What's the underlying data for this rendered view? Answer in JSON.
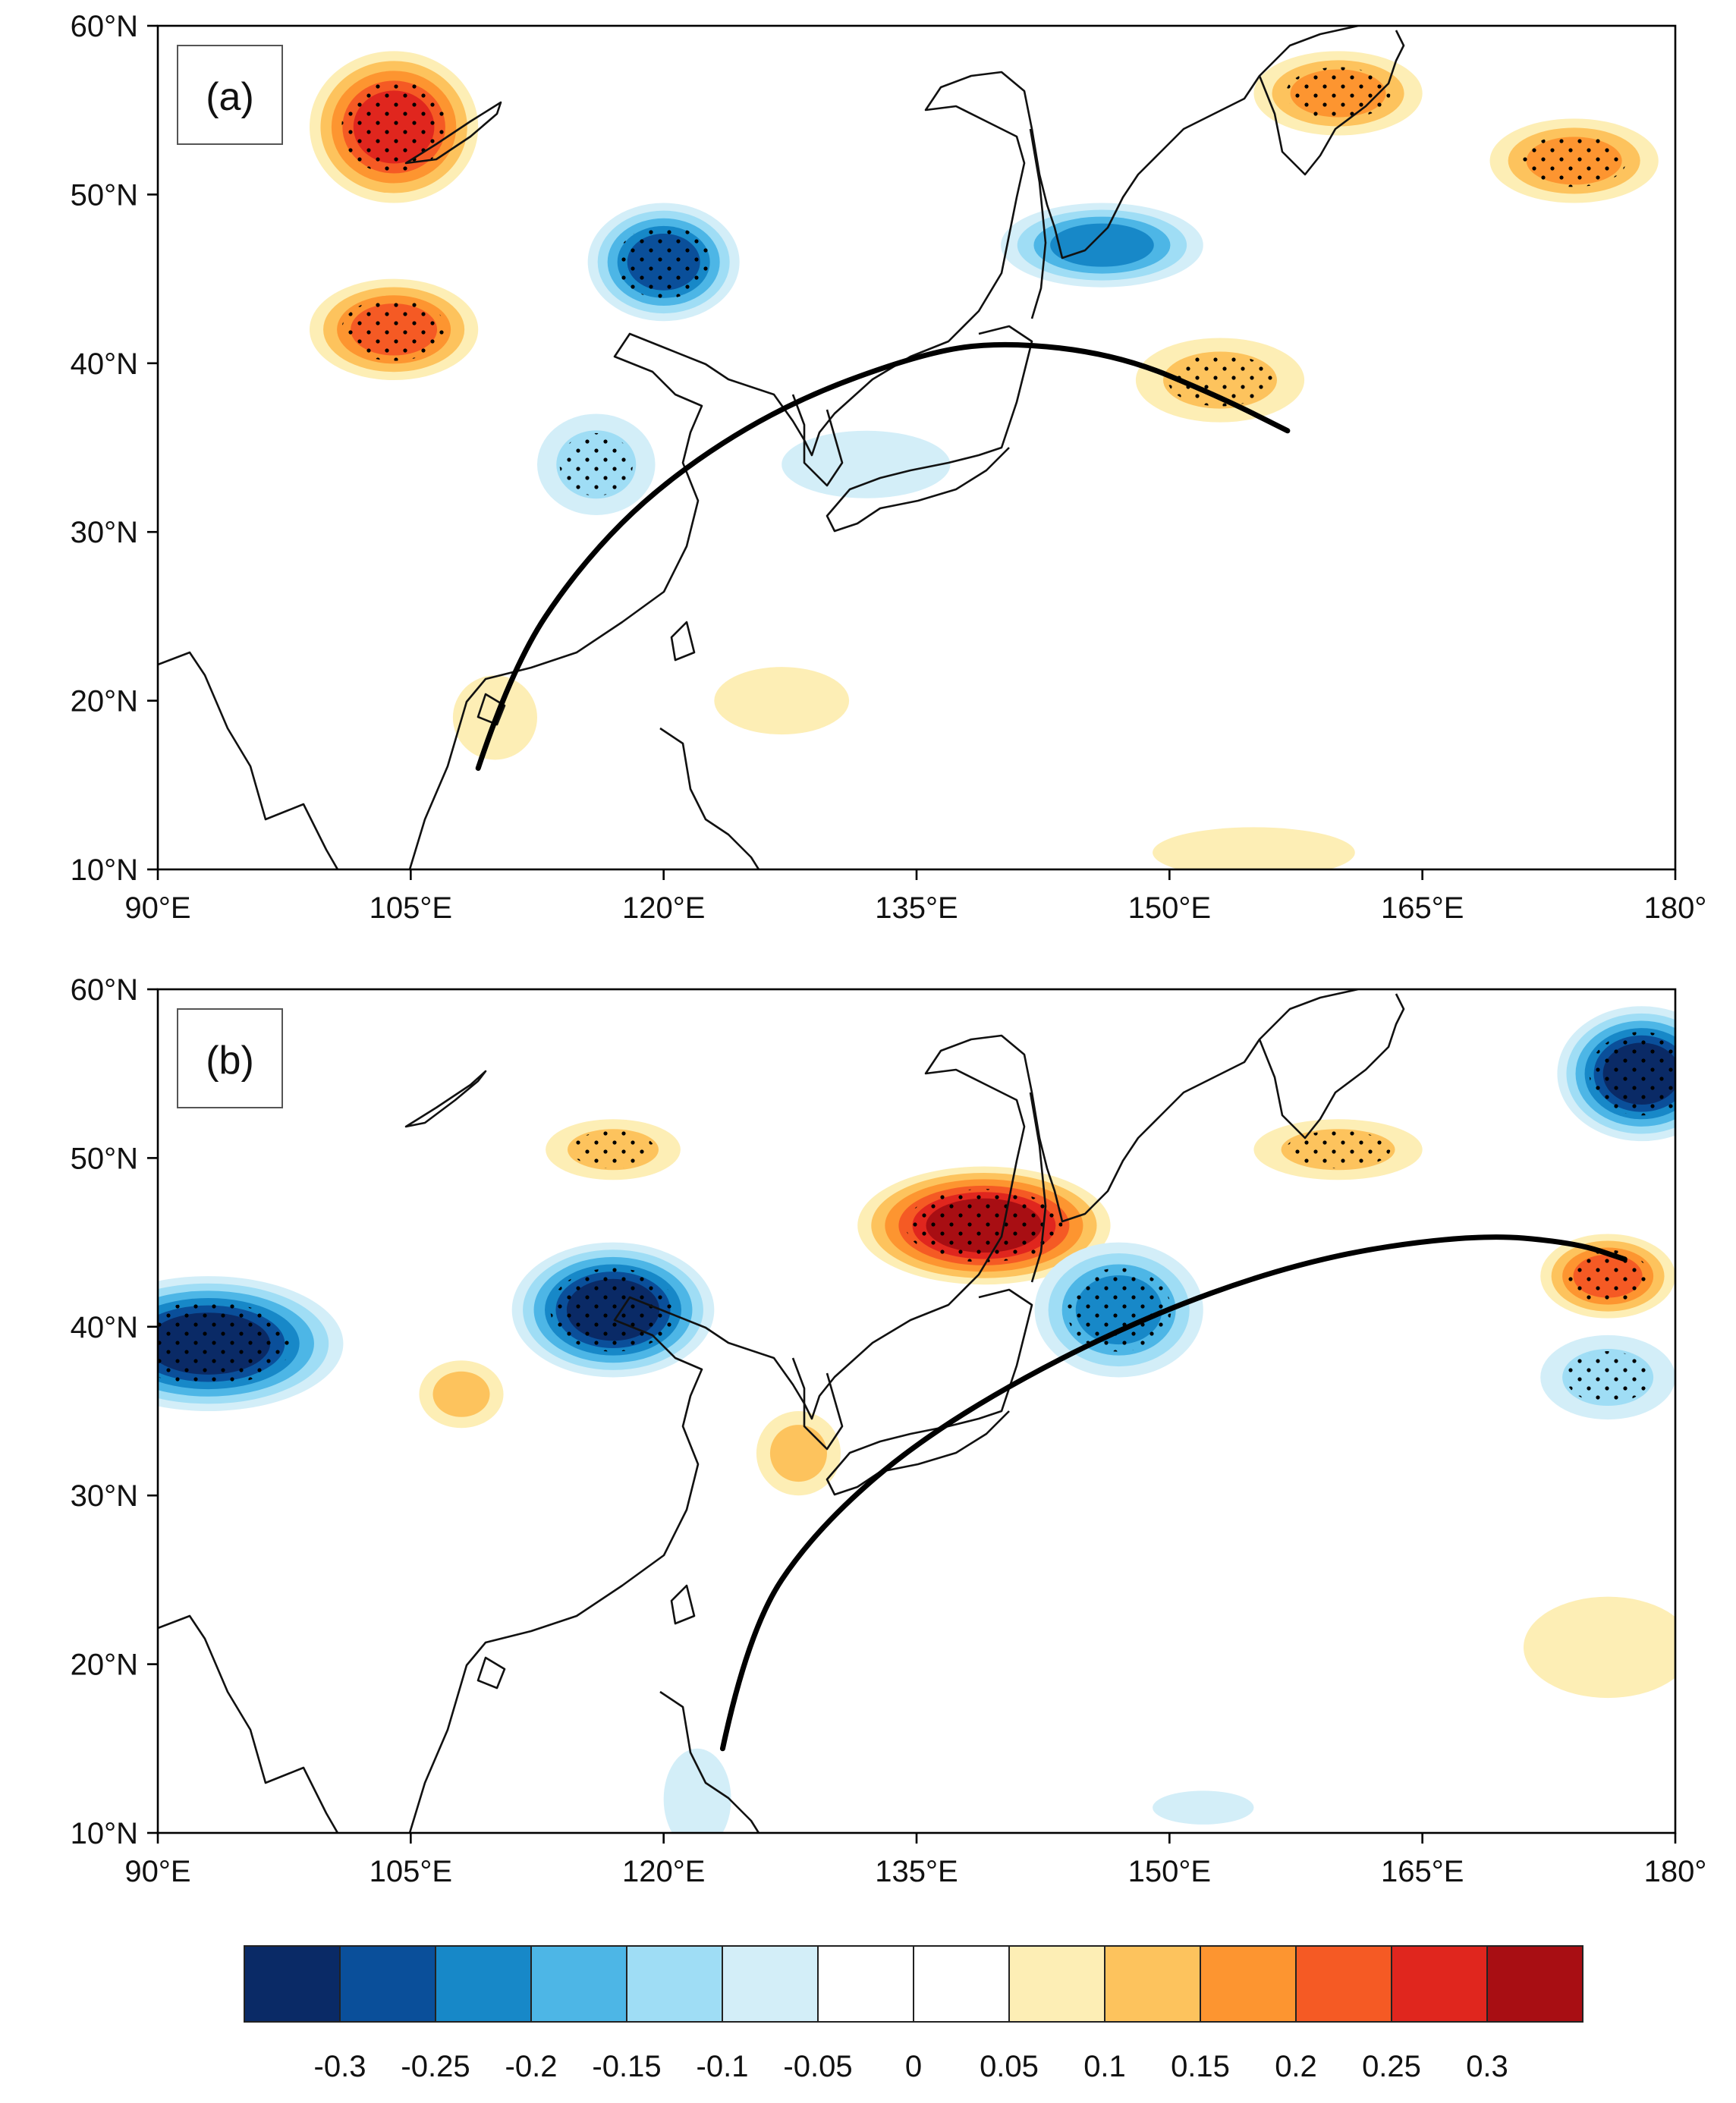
{
  "chart_data": {
    "type": "map",
    "panels": [
      {
        "label": "(a)",
        "lon_range": [
          90,
          180
        ],
        "lat_range": [
          10,
          60
        ],
        "anomalies": [
          {
            "lon": 104,
            "lat": 54,
            "value": 0.27,
            "rx": 5,
            "ry": 4.5,
            "stipple": true
          },
          {
            "lon": 104,
            "lat": 42,
            "value": 0.22,
            "rx": 5,
            "ry": 3,
            "stipple": true
          },
          {
            "lon": 120,
            "lat": 46,
            "value": -0.25,
            "rx": 4.5,
            "ry": 3.5,
            "stipple": true
          },
          {
            "lon": 146,
            "lat": 47,
            "value": -0.18,
            "rx": 6,
            "ry": 2.5,
            "stipple": false
          },
          {
            "lon": 160,
            "lat": 56,
            "value": 0.17,
            "rx": 5,
            "ry": 2.5,
            "stipple": true
          },
          {
            "lon": 174,
            "lat": 52,
            "value": 0.15,
            "rx": 5,
            "ry": 2.5,
            "stipple": true
          },
          {
            "lon": 153,
            "lat": 39,
            "value": 0.12,
            "rx": 5,
            "ry": 2.5,
            "stipple": true
          },
          {
            "lon": 116,
            "lat": 34,
            "value": -0.12,
            "rx": 3.5,
            "ry": 3,
            "stipple": true
          },
          {
            "lon": 132,
            "lat": 34,
            "value": -0.07,
            "rx": 5,
            "ry": 2,
            "stipple": false
          },
          {
            "lon": 110,
            "lat": 19,
            "value": 0.06,
            "rx": 2.5,
            "ry": 2.5,
            "stipple": false
          },
          {
            "lon": 127,
            "lat": 20,
            "value": 0.05,
            "rx": 4,
            "ry": 2,
            "stipple": false
          },
          {
            "lon": 155,
            "lat": 11,
            "value": 0.05,
            "rx": 6,
            "ry": 1.5,
            "stipple": false
          }
        ],
        "great_circle": [
          [
            109,
            16
          ],
          [
            111,
            22
          ],
          [
            115,
            28
          ],
          [
            120,
            33
          ],
          [
            127,
            37.5
          ],
          [
            135,
            40.5
          ],
          [
            140,
            41.3
          ],
          [
            147,
            40.5
          ],
          [
            153,
            38
          ],
          [
            157,
            36
          ]
        ]
      },
      {
        "label": "(b)",
        "lon_range": [
          90,
          180
        ],
        "lat_range": [
          10,
          60
        ],
        "anomalies": [
          {
            "lon": 139,
            "lat": 46,
            "value": 0.3,
            "rx": 7.5,
            "ry": 3.5,
            "stipple": true
          },
          {
            "lon": 117,
            "lat": 50.5,
            "value": 0.12,
            "rx": 4,
            "ry": 1.8,
            "stipple": true
          },
          {
            "lon": 160,
            "lat": 50.5,
            "value": 0.12,
            "rx": 5,
            "ry": 1.8,
            "stipple": true
          },
          {
            "lon": 93,
            "lat": 39,
            "value": -0.3,
            "rx": 8,
            "ry": 4,
            "stipple": true
          },
          {
            "lon": 117,
            "lat": 41,
            "value": -0.28,
            "rx": 6,
            "ry": 4,
            "stipple": true
          },
          {
            "lon": 147,
            "lat": 41,
            "value": -0.22,
            "rx": 5,
            "ry": 4,
            "stipple": true
          },
          {
            "lon": 178,
            "lat": 55,
            "value": -0.28,
            "rx": 5,
            "ry": 4,
            "stipple": true
          },
          {
            "lon": 176,
            "lat": 43,
            "value": 0.22,
            "rx": 4,
            "ry": 2.5,
            "stipple": true
          },
          {
            "lon": 176,
            "lat": 37,
            "value": -0.12,
            "rx": 4,
            "ry": 2.5,
            "stipple": true
          },
          {
            "lon": 128,
            "lat": 32.5,
            "value": 0.1,
            "rx": 2.5,
            "ry": 2.5,
            "stipple": false
          },
          {
            "lon": 108,
            "lat": 36,
            "value": 0.08,
            "rx": 2.5,
            "ry": 2,
            "stipple": false
          },
          {
            "lon": 176,
            "lat": 21,
            "value": 0.06,
            "rx": 5,
            "ry": 3,
            "stipple": false
          },
          {
            "lon": 122,
            "lat": 12,
            "value": -0.07,
            "rx": 2,
            "ry": 3,
            "stipple": false
          },
          {
            "lon": 152,
            "lat": 11.5,
            "value": -0.05,
            "rx": 3,
            "ry": 1,
            "stipple": false
          }
        ],
        "great_circle": [
          [
            123.5,
            15
          ],
          [
            125,
            22
          ],
          [
            129,
            28
          ],
          [
            136,
            34
          ],
          [
            147,
            40
          ],
          [
            158,
            44
          ],
          [
            168,
            45.5
          ],
          [
            174,
            45
          ],
          [
            177,
            44
          ]
        ]
      }
    ],
    "x_ticks": [
      "90°E",
      "105°E",
      "120°E",
      "135°E",
      "150°E",
      "165°E",
      "180°"
    ],
    "y_ticks": [
      "10°N",
      "20°N",
      "30°N",
      "40°N",
      "50°N",
      "60°N"
    ],
    "colorbar": {
      "labels": [
        "-0.3",
        "-0.25",
        "-0.2",
        "-0.15",
        "-0.1",
        "-0.05",
        "0",
        "0.05",
        "0.1",
        "0.15",
        "0.2",
        "0.25",
        "0.3"
      ],
      "colors": [
        "#0a2a66",
        "#0a4f9a",
        "#1788c8",
        "#4db6e6",
        "#9fddf5",
        "#d3eef8",
        "#ffffff",
        "#ffffff",
        "#fdeeb5",
        "#fdc35d",
        "#fd9530",
        "#f55a24",
        "#e0261e",
        "#a80e13"
      ]
    }
  }
}
